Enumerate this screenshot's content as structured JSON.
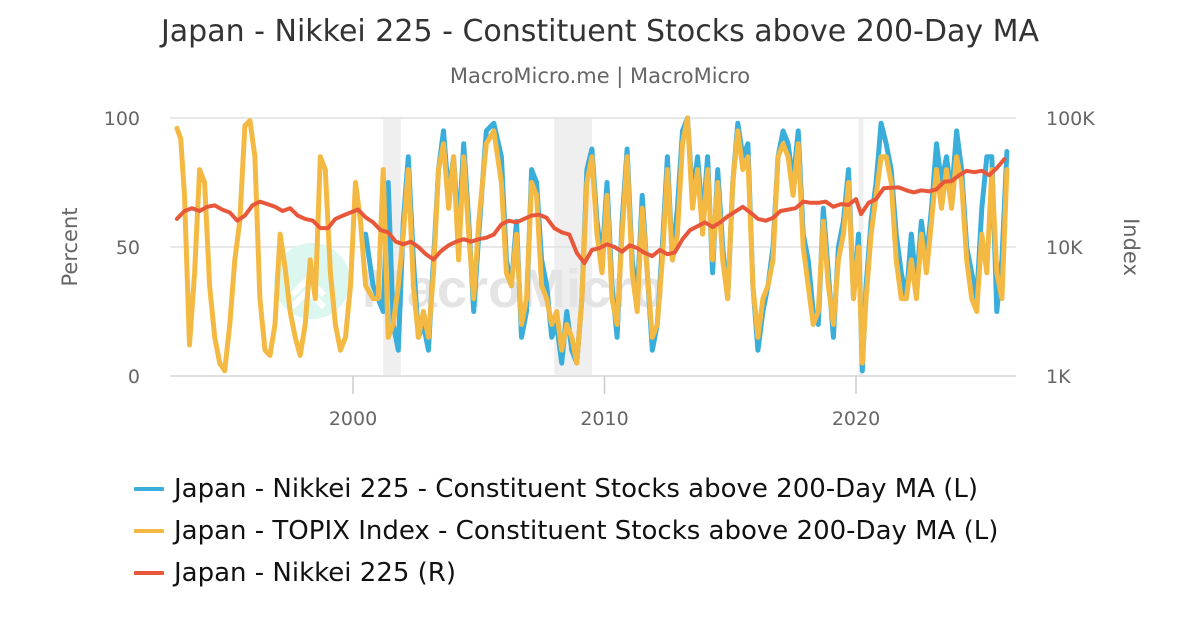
{
  "header": {
    "title": "Japan - Nikkei 225 - Constituent Stocks above 200-Day MA",
    "subtitle": "MacroMicro.me | MacroMicro"
  },
  "watermark": "MacroMicro",
  "chart_data": {
    "type": "line",
    "title": "Japan - Nikkei 225 - Constituent Stocks above 200-Day MA",
    "subtitle": "MacroMicro.me | MacroMicro",
    "xlabel": "",
    "ylabel": "Percent",
    "ylabel_right": "Index",
    "xlim": [
      1992.3,
      2026.6
    ],
    "ylim": [
      0,
      100
    ],
    "ylim_right": [
      1000,
      100000
    ],
    "y_right_scale": "log",
    "x_ticks": [
      2000,
      2010,
      2020
    ],
    "x_tick_labels": [
      "2000",
      "2010",
      "2020"
    ],
    "y_ticks": [
      0,
      50,
      100
    ],
    "y_tick_labels": [
      "0",
      "50",
      "100"
    ],
    "y_right_ticks": [
      1000,
      10000,
      100000
    ],
    "y_right_tick_labels": [
      "1K",
      "10K",
      "100K"
    ],
    "grid": true,
    "legend_position": "bottom",
    "shaded_periods": [
      {
        "start": 2001.2,
        "end": 2001.9
      },
      {
        "start": 2008.0,
        "end": 2009.5
      },
      {
        "start": 2020.1,
        "end": 2020.3
      }
    ],
    "series": [
      {
        "name": "Japan - Nikkei 225 - Constituent Stocks above 200-Day MA (L)",
        "axis": "left",
        "color": "#3aaedb",
        "x": [
          2000.5,
          2000.8,
          2001.0,
          2001.2,
          2001.4,
          2001.6,
          2001.8,
          2002.0,
          2002.2,
          2002.4,
          2002.6,
          2002.8,
          2003.0,
          2003.2,
          2003.4,
          2003.6,
          2003.8,
          2004.0,
          2004.2,
          2004.4,
          2004.6,
          2004.8,
          2005.0,
          2005.3,
          2005.6,
          2005.9,
          2006.1,
          2006.3,
          2006.5,
          2006.7,
          2006.9,
          2007.1,
          2007.3,
          2007.5,
          2007.7,
          2007.9,
          2008.1,
          2008.3,
          2008.5,
          2008.7,
          2008.9,
          2009.1,
          2009.3,
          2009.5,
          2009.7,
          2009.9,
          2010.1,
          2010.3,
          2010.5,
          2010.7,
          2010.9,
          2011.1,
          2011.3,
          2011.5,
          2011.7,
          2011.9,
          2012.1,
          2012.3,
          2012.5,
          2012.7,
          2012.9,
          2013.1,
          2013.3,
          2013.5,
          2013.7,
          2013.9,
          2014.1,
          2014.3,
          2014.5,
          2014.7,
          2014.9,
          2015.1,
          2015.3,
          2015.5,
          2015.7,
          2015.9,
          2016.1,
          2016.3,
          2016.5,
          2016.7,
          2016.9,
          2017.1,
          2017.3,
          2017.5,
          2017.7,
          2017.9,
          2018.1,
          2018.3,
          2018.5,
          2018.7,
          2018.9,
          2019.1,
          2019.3,
          2019.5,
          2019.7,
          2019.9,
          2020.1,
          2020.25,
          2020.4,
          2020.6,
          2020.8,
          2021.0,
          2021.2,
          2021.4,
          2021.6,
          2021.8,
          2022.0,
          2022.2,
          2022.4,
          2022.6,
          2022.8,
          2023.0,
          2023.2,
          2023.4,
          2023.6,
          2023.8,
          2024.0,
          2024.2,
          2024.4,
          2024.6,
          2024.8,
          2025.0,
          2025.2,
          2025.4,
          2025.6,
          2025.8,
          2026.0
        ],
        "values": [
          55,
          35,
          30,
          25,
          75,
          20,
          10,
          60,
          85,
          45,
          15,
          20,
          10,
          45,
          80,
          95,
          70,
          85,
          55,
          90,
          60,
          25,
          55,
          95,
          98,
          85,
          45,
          35,
          60,
          15,
          25,
          80,
          75,
          45,
          35,
          15,
          20,
          5,
          25,
          10,
          5,
          30,
          80,
          88,
          60,
          45,
          75,
          35,
          15,
          60,
          88,
          45,
          30,
          70,
          40,
          10,
          20,
          50,
          85,
          45,
          65,
          95,
          100,
          70,
          85,
          60,
          85,
          40,
          80,
          50,
          30,
          75,
          98,
          85,
          90,
          35,
          10,
          25,
          35,
          50,
          85,
          95,
          90,
          75,
          95,
          55,
          45,
          25,
          20,
          65,
          40,
          15,
          50,
          60,
          80,
          30,
          55,
          2,
          35,
          60,
          75,
          98,
          90,
          80,
          55,
          40,
          30,
          55,
          35,
          60,
          45,
          65,
          90,
          75,
          85,
          70,
          95,
          80,
          50,
          40,
          30,
          65,
          85,
          85,
          25,
          45,
          87
        ]
      },
      {
        "name": "Japan - TOPIX Index - Constituent Stocks above 200-Day MA (L)",
        "axis": "left",
        "color": "#f4b942",
        "x": [
          1993.0,
          1993.15,
          1993.3,
          1993.5,
          1993.7,
          1993.9,
          1994.1,
          1994.3,
          1994.5,
          1994.7,
          1994.9,
          1995.1,
          1995.3,
          1995.5,
          1995.7,
          1995.9,
          1996.1,
          1996.3,
          1996.5,
          1996.7,
          1996.9,
          1997.1,
          1997.3,
          1997.5,
          1997.7,
          1997.9,
          1998.1,
          1998.3,
          1998.5,
          1998.7,
          1998.9,
          1999.1,
          1999.3,
          1999.5,
          1999.7,
          1999.9,
          2000.1,
          2000.3,
          2000.5,
          2000.8,
          2001.0,
          2001.2,
          2001.4,
          2001.6,
          2001.8,
          2002.0,
          2002.2,
          2002.4,
          2002.6,
          2002.8,
          2003.0,
          2003.2,
          2003.4,
          2003.6,
          2003.8,
          2004.0,
          2004.2,
          2004.4,
          2004.6,
          2004.8,
          2005.0,
          2005.3,
          2005.6,
          2005.9,
          2006.1,
          2006.3,
          2006.5,
          2006.7,
          2006.9,
          2007.1,
          2007.3,
          2007.5,
          2007.7,
          2007.9,
          2008.1,
          2008.3,
          2008.5,
          2008.7,
          2008.9,
          2009.1,
          2009.3,
          2009.5,
          2009.7,
          2009.9,
          2010.1,
          2010.3,
          2010.5,
          2010.7,
          2010.9,
          2011.1,
          2011.3,
          2011.5,
          2011.7,
          2011.9,
          2012.1,
          2012.3,
          2012.5,
          2012.7,
          2012.9,
          2013.1,
          2013.3,
          2013.5,
          2013.7,
          2013.9,
          2014.1,
          2014.3,
          2014.5,
          2014.7,
          2014.9,
          2015.1,
          2015.3,
          2015.5,
          2015.7,
          2015.9,
          2016.1,
          2016.3,
          2016.5,
          2016.7,
          2016.9,
          2017.1,
          2017.3,
          2017.5,
          2017.7,
          2017.9,
          2018.1,
          2018.3,
          2018.5,
          2018.7,
          2018.9,
          2019.1,
          2019.3,
          2019.5,
          2019.7,
          2019.9,
          2020.1,
          2020.25,
          2020.4,
          2020.6,
          2020.8,
          2021.0,
          2021.2,
          2021.4,
          2021.6,
          2021.8,
          2022.0,
          2022.2,
          2022.4,
          2022.6,
          2022.8,
          2023.0,
          2023.2,
          2023.4,
          2023.6,
          2023.8,
          2024.0,
          2024.2,
          2024.4,
          2024.6,
          2024.8,
          2025.0,
          2025.2,
          2025.4,
          2025.6,
          2025.8,
          2026.0
        ],
        "values": [
          96,
          92,
          70,
          12,
          40,
          80,
          75,
          35,
          15,
          5,
          2,
          20,
          45,
          60,
          97,
          99,
          85,
          30,
          10,
          8,
          20,
          55,
          42,
          25,
          15,
          8,
          20,
          45,
          30,
          85,
          80,
          40,
          20,
          10,
          15,
          35,
          75,
          60,
          35,
          30,
          30,
          80,
          15,
          20,
          35,
          55,
          80,
          35,
          15,
          25,
          15,
          40,
          80,
          90,
          65,
          85,
          45,
          85,
          55,
          30,
          60,
          90,
          95,
          75,
          40,
          35,
          55,
          20,
          30,
          75,
          70,
          35,
          30,
          20,
          25,
          10,
          20,
          15,
          5,
          30,
          75,
          85,
          55,
          40,
          70,
          30,
          20,
          55,
          85,
          40,
          25,
          65,
          40,
          15,
          20,
          45,
          80,
          45,
          55,
          90,
          100,
          65,
          80,
          55,
          80,
          45,
          75,
          45,
          30,
          75,
          95,
          80,
          85,
          35,
          15,
          30,
          35,
          45,
          85,
          90,
          85,
          70,
          90,
          50,
          35,
          20,
          25,
          60,
          35,
          20,
          45,
          55,
          75,
          30,
          50,
          5,
          30,
          55,
          70,
          85,
          85,
          75,
          45,
          30,
          30,
          45,
          30,
          55,
          40,
          60,
          80,
          65,
          80,
          65,
          85,
          75,
          45,
          30,
          25,
          55,
          40,
          80,
          40,
          30,
          80
        ]
      },
      {
        "name": "Japan - Nikkei 225 (R)",
        "axis": "right",
        "color": "#e8573a",
        "x": [
          1993.0,
          1993.3,
          1993.6,
          1993.9,
          1994.2,
          1994.5,
          1994.8,
          1995.1,
          1995.4,
          1995.7,
          1996.0,
          1996.3,
          1996.6,
          1996.9,
          1997.2,
          1997.5,
          1997.8,
          1998.1,
          1998.4,
          1998.7,
          1999.0,
          1999.3,
          1999.6,
          1999.9,
          2000.2,
          2000.5,
          2000.8,
          2001.1,
          2001.4,
          2001.7,
          2002.0,
          2002.3,
          2002.6,
          2002.9,
          2003.2,
          2003.5,
          2003.8,
          2004.1,
          2004.4,
          2004.7,
          2005.0,
          2005.3,
          2005.6,
          2005.9,
          2006.2,
          2006.5,
          2006.8,
          2007.1,
          2007.4,
          2007.7,
          2008.0,
          2008.3,
          2008.6,
          2008.9,
          2009.2,
          2009.5,
          2009.8,
          2010.1,
          2010.4,
          2010.7,
          2011.0,
          2011.3,
          2011.6,
          2011.9,
          2012.2,
          2012.5,
          2012.8,
          2013.1,
          2013.4,
          2013.7,
          2014.0,
          2014.3,
          2014.6,
          2014.9,
          2015.2,
          2015.5,
          2015.8,
          2016.1,
          2016.4,
          2016.7,
          2017.0,
          2017.3,
          2017.6,
          2017.9,
          2018.2,
          2018.5,
          2018.8,
          2019.1,
          2019.4,
          2019.7,
          2020.0,
          2020.2,
          2020.5,
          2020.8,
          2021.1,
          2021.4,
          2021.7,
          2022.0,
          2022.3,
          2022.6,
          2022.9,
          2023.2,
          2023.5,
          2023.8,
          2024.1,
          2024.4,
          2024.7,
          2025.0,
          2025.3,
          2025.6,
          2025.9
        ],
        "values": [
          16500,
          19000,
          20000,
          19000,
          20500,
          21000,
          19500,
          18500,
          16000,
          17500,
          21000,
          22500,
          21500,
          20500,
          19000,
          20000,
          17500,
          16500,
          16000,
          14000,
          14000,
          16500,
          17500,
          18500,
          19500,
          17000,
          15500,
          13500,
          13000,
          11000,
          10500,
          11000,
          10000,
          8800,
          8000,
          9300,
          10300,
          11000,
          11500,
          11000,
          11500,
          11800,
          12500,
          15000,
          16000,
          15500,
          16500,
          17500,
          17800,
          16800,
          14000,
          13000,
          12500,
          9000,
          7500,
          9500,
          9800,
          10500,
          10000,
          9200,
          10300,
          9800,
          9000,
          8500,
          9500,
          8800,
          9100,
          11500,
          13500,
          14500,
          15500,
          14300,
          15500,
          17300,
          18800,
          20500,
          18500,
          16500,
          16000,
          16800,
          19000,
          19500,
          20000,
          22500,
          22000,
          22000,
          22500,
          20500,
          21500,
          21200,
          23500,
          18000,
          22000,
          23500,
          28500,
          28800,
          29000,
          27500,
          26500,
          27500,
          27000,
          28000,
          32000,
          32500,
          36000,
          39000,
          38000,
          39000,
          36000,
          41000,
          48000
        ]
      }
    ]
  },
  "legend": {
    "items": [
      {
        "label": "Japan - Nikkei 225 - Constituent Stocks above 200-Day MA (L)",
        "color": "#3aaedb"
      },
      {
        "label": "Japan - TOPIX Index - Constituent Stocks above 200-Day MA (L)",
        "color": "#f4b942"
      },
      {
        "label": "Japan - Nikkei 225 (R)",
        "color": "#e8573a"
      }
    ]
  },
  "colors": {
    "grid": "#e0e0e0",
    "shade": "#efefef",
    "axis_text": "#666666"
  }
}
